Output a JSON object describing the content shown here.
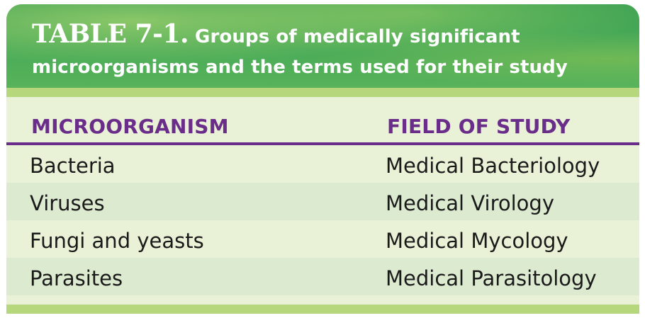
{
  "table": {
    "label": "TABLE 7-1.",
    "title_line_1": "Groups of medically significant",
    "title_line_2": "microorganisms and the terms used for their study",
    "columns": [
      "MICROORGANISM",
      "FIELD OF STUDY"
    ],
    "rows": [
      [
        "Bacteria",
        "Medical Bacteriology"
      ],
      [
        "Viruses",
        "Medical Virology"
      ],
      [
        "Fungi and yeasts",
        "Medical Mycology"
      ],
      [
        "Parasites",
        "Medical Parasitology"
      ]
    ]
  },
  "colors": {
    "header_green": "#4aab58",
    "strip_green": "#b6d77b",
    "row_light": "#e9f1d6",
    "row_alt": "#dcead0",
    "header_text_purple": "#6a2d8a",
    "body_text": "#1a1a1a"
  }
}
